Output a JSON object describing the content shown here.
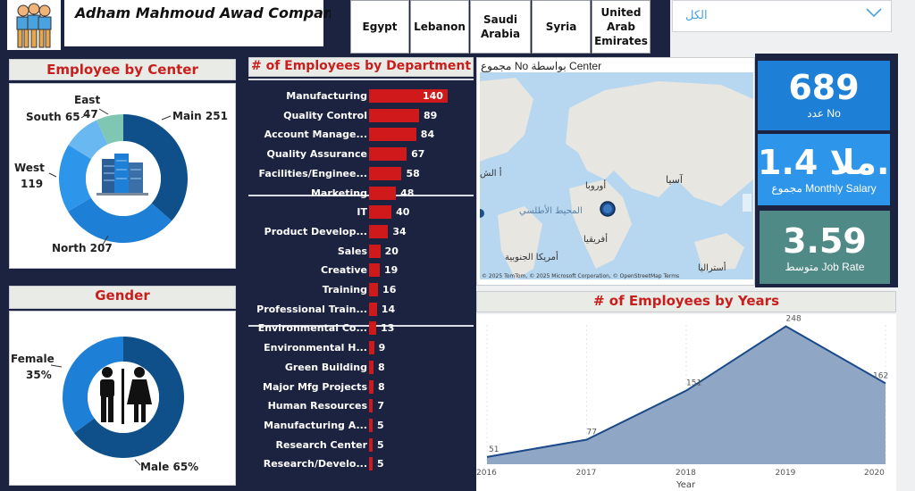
{
  "header": {
    "company_title": "Adham Mahmoud Awad Company"
  },
  "country_slicer": {
    "options": [
      {
        "label": "Egypt"
      },
      {
        "label": "Lebanon"
      },
      {
        "label": "Saudi\nArabia"
      },
      {
        "label": "Syria"
      },
      {
        "label": "United\nArab\nEmirates"
      }
    ]
  },
  "filter_dropdown": {
    "selected": "الكل"
  },
  "employee_by_center": {
    "title": "Employee by Center",
    "segments": [
      {
        "label": "Main 251",
        "value": 251,
        "color": "#0f4f8a"
      },
      {
        "label": "North 207",
        "value": 207,
        "color": "#1e7fd6"
      },
      {
        "label": "West",
        "sublabel": "119",
        "value": 119,
        "color": "#2e96ea"
      },
      {
        "label": "South 65",
        "value": 65,
        "color": "#6ab8f2"
      },
      {
        "label": "East",
        "sublabel": "47",
        "value": 47,
        "color": "#7fc7b2"
      }
    ]
  },
  "gender": {
    "title": "Gender",
    "segments": [
      {
        "label": "Male 65%",
        "value": 65,
        "color": "#0f4f8a"
      },
      {
        "label": "Female",
        "sublabel": "35%",
        "value": 35,
        "color": "#1e7fd6"
      }
    ]
  },
  "department_chart": {
    "title": "# of Employees by Department",
    "bar_color": "#d0191b",
    "max": 140
  },
  "map": {
    "title": "مجموع No بواسطة Center",
    "labels": {
      "asia": "آسيا",
      "europe": "أوروبا",
      "africa": "أفريقيا",
      "atlantic": "المحيط\nالأطلسي",
      "south_america": "أمريكا\nالجنوبية",
      "australia": "أستراليا",
      "na_edge": "أ\nالش",
      "credits": "© 2025 TomTom, © 2025 Microsoft Corporation, © OpenStreetMap Terms"
    }
  },
  "kpis": [
    {
      "value": "689",
      "label": "عدد No",
      "color": "#1e7fd6"
    },
    {
      "value": "1.4 ملا...",
      "label": "مجموع Monthly Salary",
      "color": "#2e96ea"
    },
    {
      "value": "3.59",
      "label": "متوسط Job Rate",
      "color": "#4f8a86"
    }
  ],
  "years_chart": {
    "title": "# of Employees by Years",
    "fill_color": "#8fa6c4",
    "line_color": "#1a4a8a"
  },
  "chart_data": [
    {
      "type": "bar",
      "title": "# of Employees by Department",
      "categories": [
        "Manufacturing",
        "Quality Control",
        "Account Manage...",
        "Quality Assurance",
        "Facilities/Enginee...",
        "Marketing",
        "IT",
        "Product Develop...",
        "Sales",
        "Creative",
        "Training",
        "Professional Train...",
        "Environmental Co...",
        "Environmental H...",
        "Green Building",
        "Major Mfg Projects",
        "Human Resources",
        "Manufacturing A...",
        "Research Center",
        "Research/Develo..."
      ],
      "values": [
        140,
        89,
        84,
        67,
        58,
        48,
        40,
        34,
        20,
        19,
        16,
        14,
        13,
        9,
        8,
        8,
        7,
        5,
        5,
        5
      ],
      "orientation": "horizontal"
    },
    {
      "type": "area",
      "title": "# of Employees by Years",
      "xlabel": "Year",
      "x": [
        "2016",
        "2017",
        "2018",
        "2019",
        "2020"
      ],
      "values": [
        51,
        77,
        151,
        248,
        162
      ],
      "ylim": [
        40,
        250
      ]
    }
  ]
}
